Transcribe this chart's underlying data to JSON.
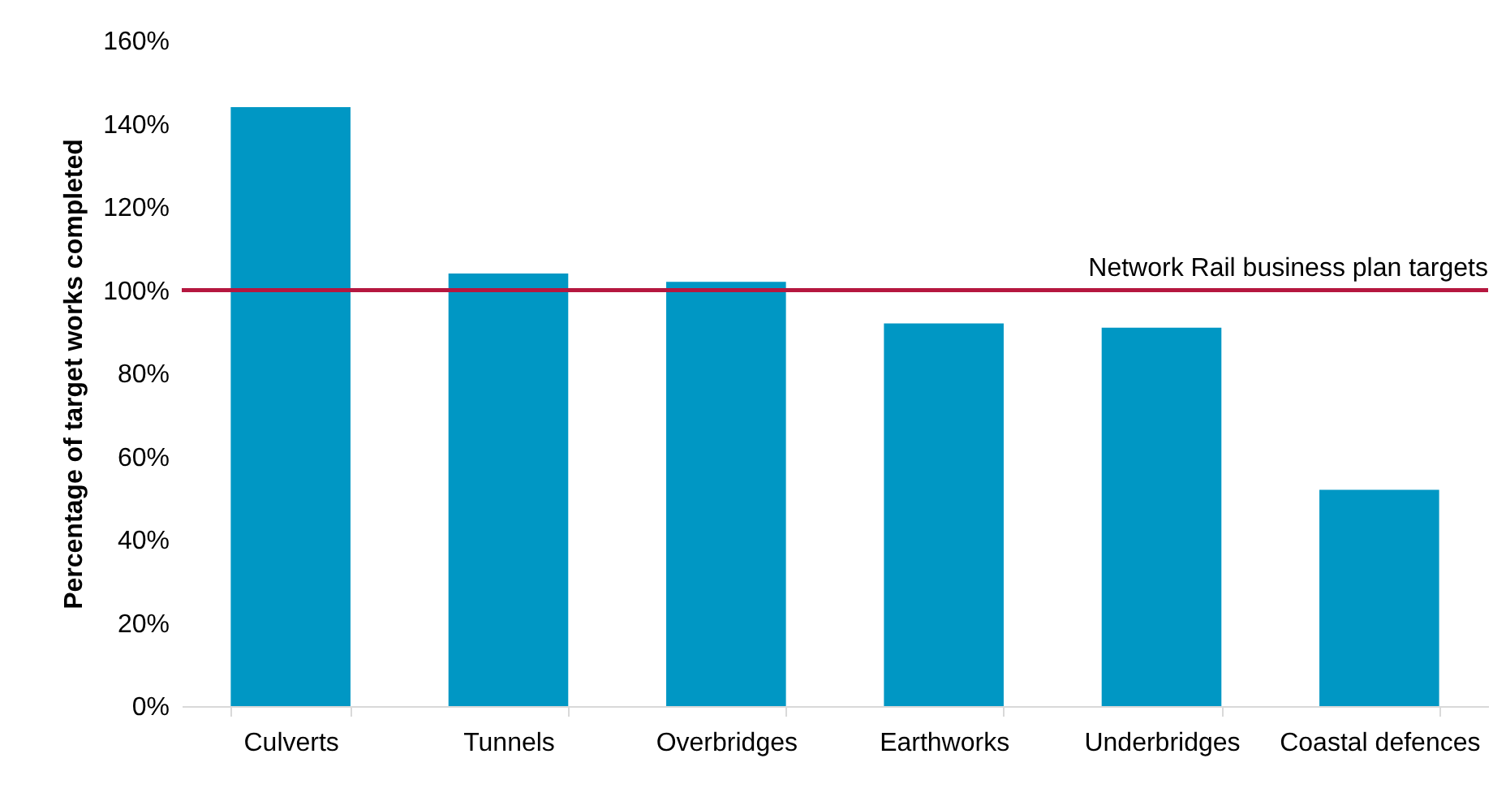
{
  "chart_data": {
    "type": "bar",
    "ylabel": "Percentage of target works completed",
    "categories": [
      "Culverts",
      "Tunnels",
      "Overbridges",
      "Earthworks",
      "Underbridges",
      "Coastal defences"
    ],
    "values": [
      144,
      104,
      102,
      92,
      91,
      52
    ],
    "color": "#0097c4",
    "ylim": [
      0,
      160
    ],
    "yticks": [
      {
        "value": 0,
        "label": "0%"
      },
      {
        "value": 20,
        "label": "20%"
      },
      {
        "value": 40,
        "label": "40%"
      },
      {
        "value": 60,
        "label": "60%"
      },
      {
        "value": 80,
        "label": "80%"
      },
      {
        "value": 100,
        "label": "100%"
      },
      {
        "value": 120,
        "label": "120%"
      },
      {
        "value": 140,
        "label": "140%"
      },
      {
        "value": 160,
        "label": "160%"
      }
    ],
    "grid": false,
    "ref_lines": [
      {
        "axis": "y",
        "value": 100,
        "label": "Network Rail business plan targets",
        "color": "#b5173f"
      }
    ]
  }
}
